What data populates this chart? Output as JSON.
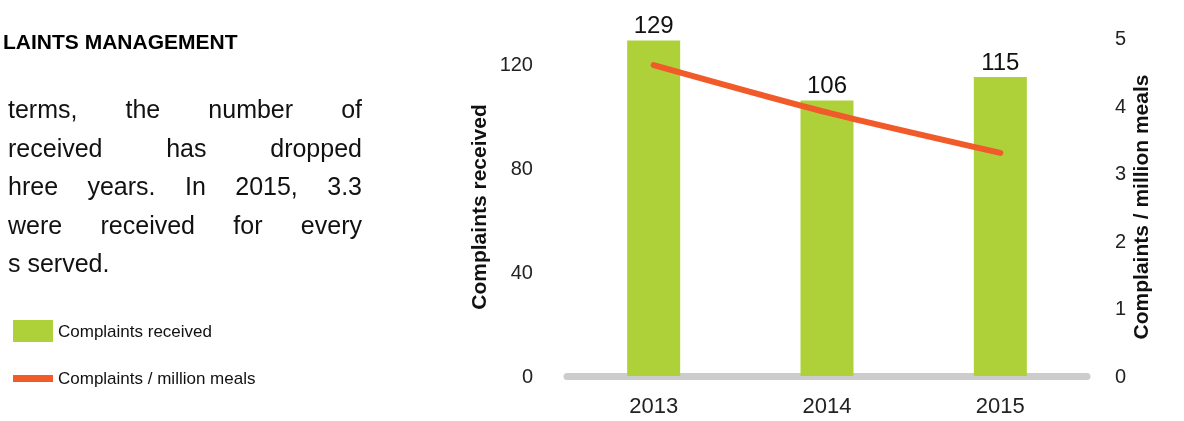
{
  "chart_data": {
    "type": "bar",
    "title": "LAINTS MANAGEMENT",
    "annotations": [
      "terms, the number of",
      "received has dropped",
      "hree years. In 2015, 3.3",
      "were received for every",
      "s served."
    ],
    "categories": [
      "2013",
      "2014",
      "2015"
    ],
    "series": [
      {
        "name": "Complaints received",
        "type": "bar",
        "color": "#aed13a",
        "values": [
          129,
          106,
          115
        ],
        "value_labels": [
          "129",
          "106",
          "115"
        ]
      },
      {
        "name": "Complaints / million meals",
        "type": "line",
        "axis": "y2",
        "color": "#f15a29",
        "values": [
          4.6,
          3.9,
          3.3
        ]
      }
    ],
    "ylabel": "Complaints received",
    "y2label": "Complaints / million meals",
    "ylim": [
      0,
      130
    ],
    "yticks": [
      0,
      40,
      80,
      120
    ],
    "y2lim": [
      0,
      5
    ],
    "y2ticks": [
      0,
      1,
      2,
      3,
      4,
      5
    ],
    "grid": false,
    "legend": "left",
    "marker": "none"
  }
}
